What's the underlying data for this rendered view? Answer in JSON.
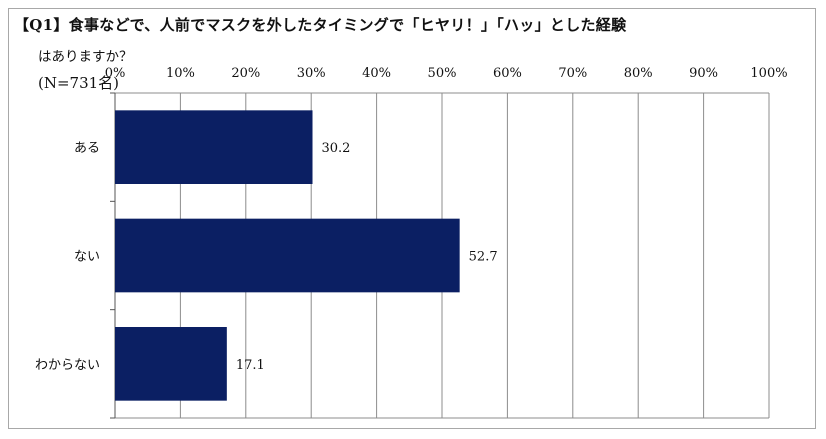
{
  "chart_data": {
    "type": "bar",
    "orientation": "horizontal",
    "title": "【Q1】食事などで、人前でマスクを外したタイミングで「ヒヤリ！」「ハッ」とした経験",
    "subtitle": "はありますか？",
    "sample_size": "(N=731名)",
    "categories": [
      "ある",
      "ない",
      "わからない"
    ],
    "values": [
      30.2,
      52.7,
      17.1
    ],
    "data_labels": [
      "30.2",
      "52.7",
      "17.1"
    ],
    "xlim": [
      0,
      100
    ],
    "x_ticks": [
      "0%",
      "10%",
      "20%",
      "30%",
      "40%",
      "50%",
      "60%",
      "70%",
      "80%",
      "90%",
      "100%"
    ],
    "xlabel": "",
    "ylabel": "",
    "grid": true,
    "legend": "none",
    "axis_position": "top",
    "bar_color": "#0b1f63",
    "grid_color": "#8c8c8c"
  }
}
